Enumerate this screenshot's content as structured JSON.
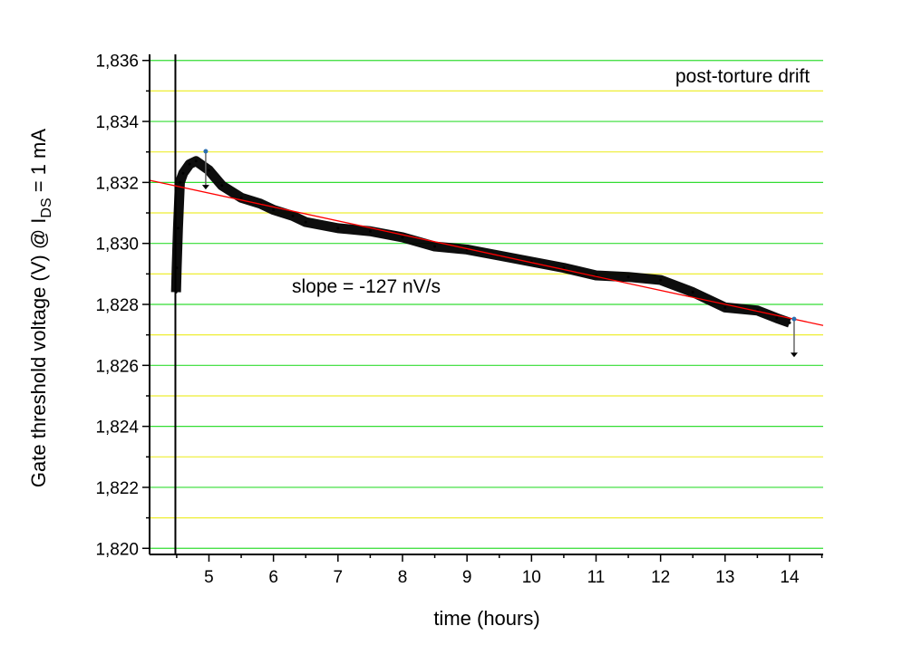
{
  "chart_data": {
    "type": "line",
    "title": "",
    "annotations": [
      "post-torture drift",
      "slope = -127 nV/s"
    ],
    "xlabel": "time (hours)",
    "ylabel": {
      "main": "Gate threshold voltage (V) @ I",
      "subscript": "DS",
      "suffix": " = 1 mA"
    },
    "xlim": [
      4.08,
      14.52
    ],
    "ylim": [
      1.8198,
      1.8362
    ],
    "x_ticks": [
      5,
      6,
      7,
      8,
      9,
      10,
      11,
      12,
      13,
      14
    ],
    "x_tick_labels": [
      "5",
      "6",
      "7",
      "8",
      "9",
      "10",
      "11",
      "12",
      "13",
      "14"
    ],
    "y_ticks": [
      1.82,
      1.822,
      1.824,
      1.826,
      1.828,
      1.83,
      1.832,
      1.834,
      1.836
    ],
    "y_tick_labels": [
      "1,820",
      "1,822",
      "1,824",
      "1,826",
      "1,828",
      "1,830",
      "1,832",
      "1,834",
      "1,836"
    ],
    "grid": {
      "major_color": "#33dd33",
      "minor_color": "#eeee33",
      "on": true
    },
    "marker_line_x": 4.48,
    "series": [
      {
        "color": "#000000",
        "x": [
          4.49,
          4.5,
          4.52,
          4.55,
          4.6,
          4.7,
          4.8,
          5.0,
          5.2,
          5.5,
          5.8,
          6.0,
          6.3,
          6.5,
          7.0,
          7.5,
          8.0,
          8.5,
          9.0,
          9.5,
          10.0,
          10.5,
          11.0,
          11.5,
          12.0,
          12.5,
          13.0,
          13.5,
          13.8,
          14.0
        ],
        "y": [
          1.8284,
          1.8292,
          1.8305,
          1.832,
          1.8323,
          1.8326,
          1.8327,
          1.8324,
          1.8319,
          1.8315,
          1.8313,
          1.8311,
          1.8309,
          1.8307,
          1.8305,
          1.8304,
          1.8302,
          1.8299,
          1.8298,
          1.8296,
          1.8294,
          1.8292,
          1.82895,
          1.8289,
          1.8288,
          1.8284,
          1.8279,
          1.8278,
          1.82755,
          1.8274
        ]
      }
    ],
    "fit_line": {
      "color": "#ff0000",
      "x": [
        4.08,
        14.52
      ],
      "y": [
        1.83207,
        1.82731
      ],
      "slope_label": "slope = -127 nV/s"
    },
    "error_bars": [
      {
        "x": 4.95,
        "y_top": 1.83302,
        "y_bottom": 1.83183
      },
      {
        "x": 14.07,
        "y_top": 1.82752,
        "y_bottom": 1.82633
      }
    ]
  }
}
